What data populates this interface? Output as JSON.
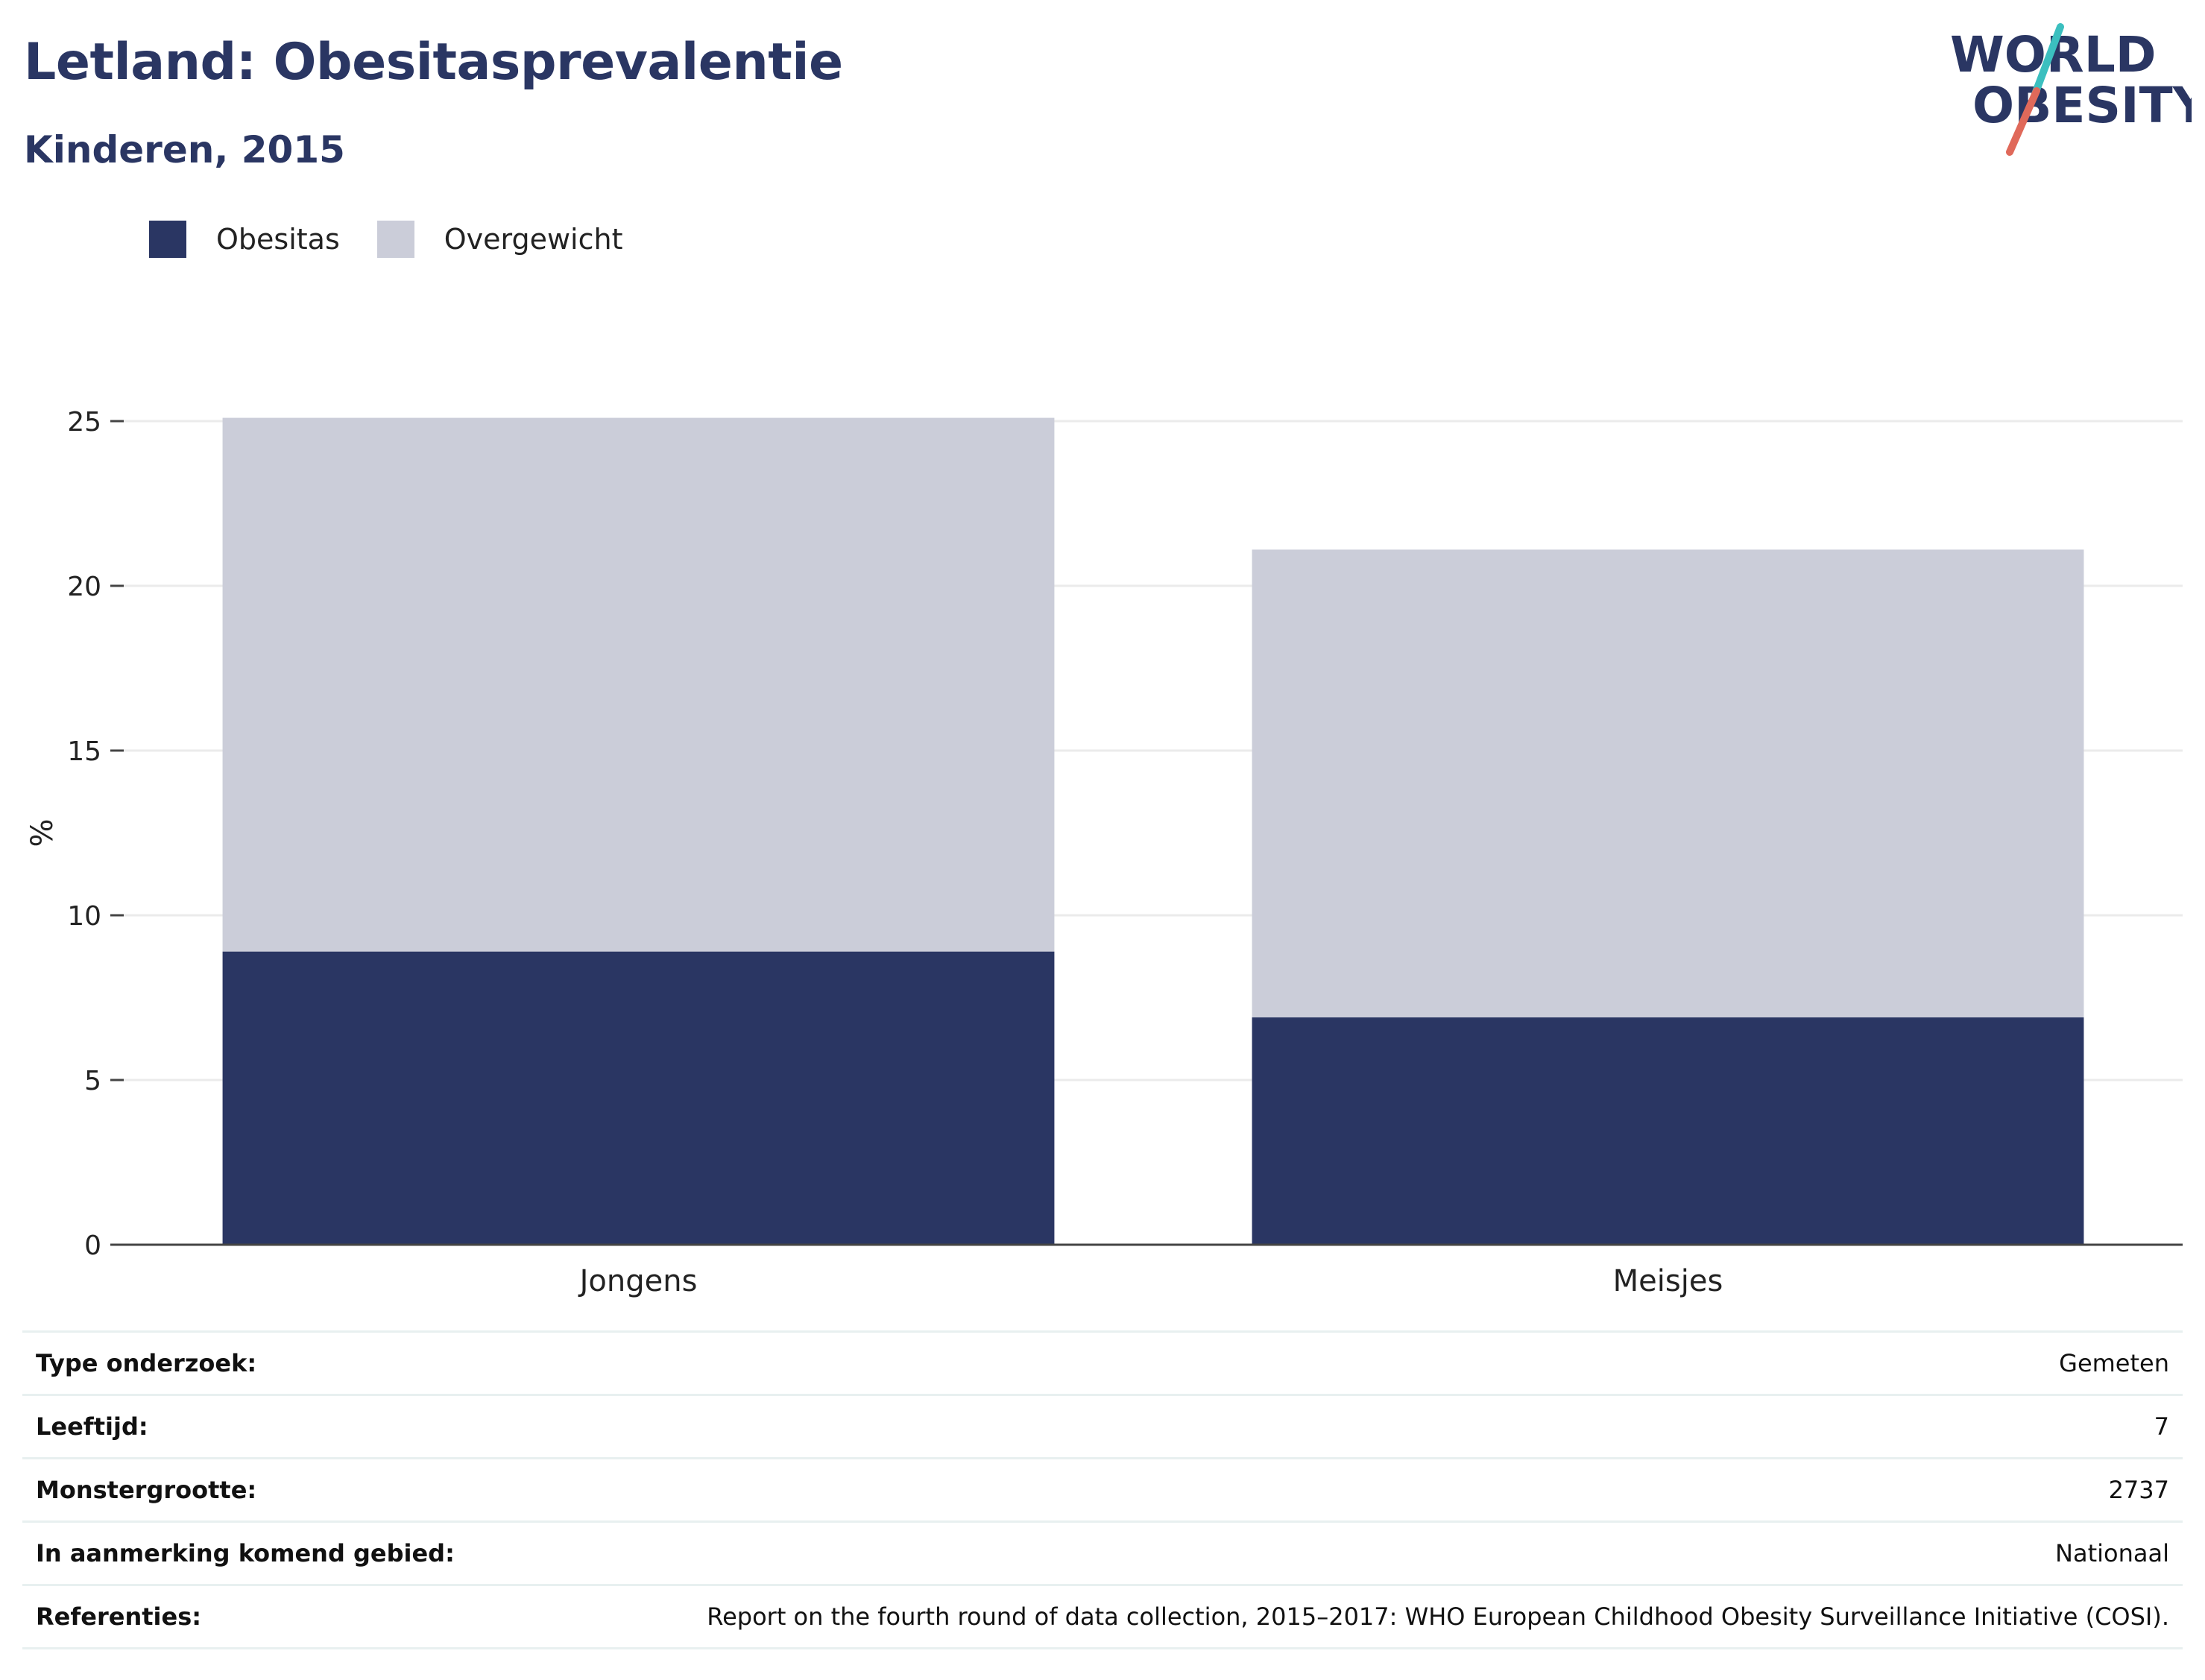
{
  "header": {
    "title": "Letland: Obesitasprevalentie",
    "subtitle": "Kinderen, 2015"
  },
  "logo": {
    "line1": "WORLD",
    "line2": "OBESITY",
    "colors": {
      "text": "#2a3663",
      "slash_top": "#3bbfbf",
      "slash_bottom": "#e0695a"
    }
  },
  "legend": [
    {
      "label": "Obesitas",
      "color": "#2a3663"
    },
    {
      "label": "Overgewicht",
      "color": "#cbcdd9"
    }
  ],
  "chart_data": {
    "type": "bar",
    "stacked": true,
    "categories": [
      "Jongens",
      "Meisjes"
    ],
    "series": [
      {
        "name": "Obesitas",
        "values": [
          8.9,
          6.9
        ],
        "color": "#2a3663"
      },
      {
        "name": "Overgewicht",
        "values": [
          16.2,
          14.2
        ],
        "color": "#cbcdd9"
      }
    ],
    "ylabel": "%",
    "ylim": [
      0,
      25
    ],
    "yticks": [
      0,
      5,
      10,
      15,
      20,
      25
    ],
    "grid": true,
    "legend_position": "top-left"
  },
  "info": [
    {
      "key": "Type onderzoek:",
      "value": "Gemeten"
    },
    {
      "key": "Leeftijd:",
      "value": "7"
    },
    {
      "key": "Monstergrootte:",
      "value": "2737"
    },
    {
      "key": "In aanmerking komend gebied:",
      "value": "Nationaal"
    },
    {
      "key": "Referenties:",
      "value": "Report on the fourth round of data collection, 2015–2017: WHO European Childhood Obesity Surveillance Initiative (COSI)."
    }
  ]
}
